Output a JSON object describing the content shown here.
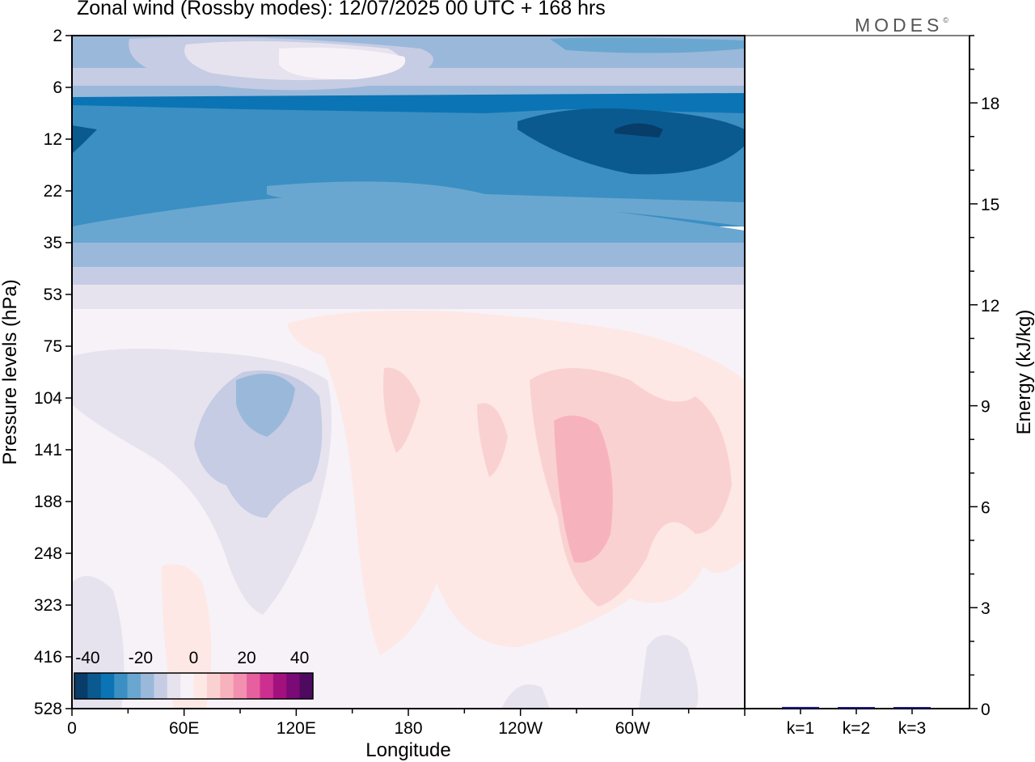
{
  "title": "Zonal wind (Rossby modes):  12/07/2025  00 UTC  + 168 hrs",
  "logo": {
    "text": "MODES",
    "mark": "©"
  },
  "colors": {
    "scale": [
      "#083c69",
      "#0a5a8f",
      "#0b74b4",
      "#3b8fc3",
      "#6aa7d0",
      "#9ab8da",
      "#c5cce3",
      "#e6e3ef",
      "#f7f2f7",
      "#fde8e5",
      "#fad1d1",
      "#f7b3bd",
      "#f38fb0",
      "#e6609f",
      "#cc2f8f",
      "#a3117e",
      "#7a0a75",
      "#4d0a5f"
    ],
    "energy_bar": "#1a1a8c"
  },
  "chart_data": [
    {
      "type": "heatmap",
      "title": "Zonal wind (Rossby modes):  12/07/2025  00 UTC  + 168 hrs",
      "xlabel": "Longitude",
      "ylabel": "Pressure levels (hPa)",
      "x_ticks": [
        "0",
        "60E",
        "120E",
        "180",
        "120W",
        "60W"
      ],
      "y_ticks": [
        "2",
        "6",
        "12",
        "22",
        "35",
        "53",
        "75",
        "104",
        "141",
        "188",
        "248",
        "323",
        "416",
        "528"
      ],
      "colorbar_labels": [
        "-40",
        "-20",
        "0",
        "20",
        "40"
      ],
      "colorbar_range": [
        -45,
        45
      ],
      "colorbar_step": 5,
      "y_scale": "log"
    },
    {
      "type": "bar",
      "ylabel": "Energy (kJ/kg)",
      "categories": [
        "k=1",
        "k=2",
        "k=3"
      ],
      "values": [
        0.05,
        0.02,
        0.02
      ],
      "y_ticks": [
        "0",
        "3",
        "6",
        "9",
        "12",
        "15",
        "18"
      ],
      "ylim": [
        0,
        20
      ]
    }
  ]
}
